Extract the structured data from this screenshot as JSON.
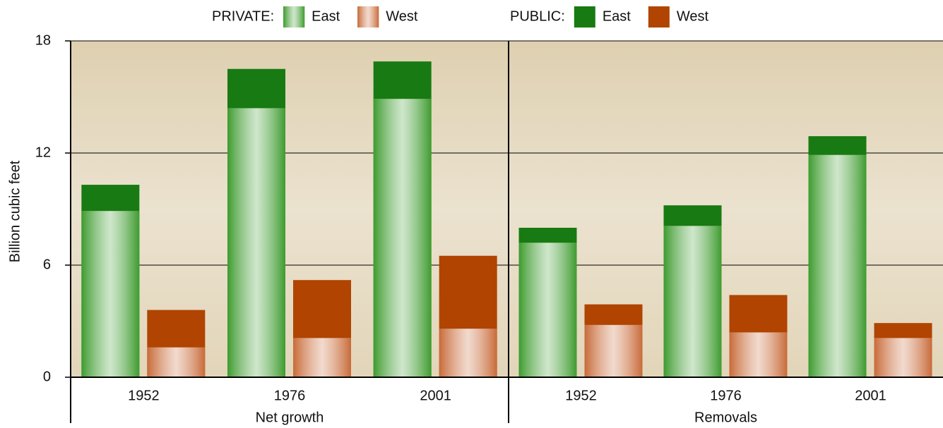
{
  "chart_data": {
    "type": "bar",
    "ylabel": "Billion cubic feet",
    "ylim": [
      0,
      18
    ],
    "yticks": [
      0,
      6,
      12,
      18
    ],
    "grid": true,
    "legend_groups": [
      "PRIVATE:",
      "PUBLIC:"
    ],
    "panels": [
      {
        "label": "Net growth",
        "categories": [
          "1952",
          "1976",
          "2001"
        ]
      },
      {
        "label": "Removals",
        "categories": [
          "1952",
          "1976",
          "2001"
        ]
      }
    ],
    "series": [
      {
        "name": "East",
        "legend_group": 0,
        "stack": "East",
        "gradient": true,
        "color": "#3d9b2e",
        "values": [
          8.9,
          14.4,
          14.9,
          7.2,
          8.1,
          11.9
        ]
      },
      {
        "name": "West",
        "legend_group": 0,
        "stack": "West",
        "gradient": true,
        "color": "#c86a38",
        "values": [
          1.6,
          2.1,
          2.6,
          2.8,
          2.4,
          2.1
        ]
      },
      {
        "name": "East",
        "legend_group": 1,
        "stack": "East",
        "gradient": false,
        "color": "#187a12",
        "values": [
          1.4,
          2.1,
          2.0,
          0.8,
          1.1,
          1.0
        ]
      },
      {
        "name": "West",
        "legend_group": 1,
        "stack": "West",
        "gradient": false,
        "color": "#b04400",
        "values": [
          2.0,
          3.1,
          3.9,
          1.1,
          2.0,
          0.8
        ]
      }
    ]
  }
}
